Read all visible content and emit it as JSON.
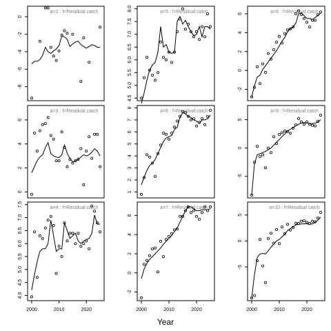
{
  "figure": {
    "xlabel": "Year"
  },
  "colors": {
    "line": "#000000",
    "points": "#000000",
    "panel_title": "#808080",
    "frame": "#000000"
  },
  "chart_data": [
    {
      "type": "line",
      "title": "a=2 : f=Residual catch",
      "ylim": [
        -9.6,
        1.2
      ],
      "yticks": [
        "-8",
        "-6",
        "-4",
        "-2",
        "0"
      ],
      "xlim": [
        1998.5,
        2026.5
      ],
      "xticks": [],
      "series": [
        {
          "x": [
            2000,
            2001,
            2002,
            2003,
            2004,
            2005,
            2006,
            2007,
            2008,
            2009,
            2010,
            2011,
            2012,
            2013,
            2014,
            2015,
            2016,
            2017,
            2018,
            2019,
            2020,
            2021,
            2022,
            2023,
            2024,
            2025
          ],
          "y": [
            -5.4,
            -5.1,
            -5.1,
            -4.9,
            -4.4,
            -3.5,
            -4.0,
            -4.2,
            -3.9,
            -3.7,
            -3.3,
            -2.2,
            -2.3,
            -2.6,
            -3.4,
            -3.1,
            -2.9,
            -2.8,
            -3.2,
            -3.4,
            -3.6,
            -3.4,
            -3.2,
            -3.3,
            -3.5,
            -3.5
          ]
        }
      ],
      "points": {
        "x": [
          2000,
          2003,
          2005,
          2006,
          2007,
          2008,
          2009,
          2010,
          2011,
          2012,
          2013,
          2015,
          2018,
          2019,
          2021,
          2025
        ],
        "y": [
          -9.3,
          -2.8,
          1.0,
          1.0,
          -3.5,
          -4.5,
          -5.0,
          -3.9,
          -2.1,
          -1.6,
          -1.9,
          -2.0,
          -7.4,
          -2.4,
          -5.2,
          -1.2
        ]
      }
    },
    {
      "type": "line",
      "title": "a=5 : f=Residual catch",
      "ylim": [
        4.4,
        8.1
      ],
      "yticks": [
        "4.5",
        "5.0",
        "5.5",
        "6.0",
        "6.5",
        "7.0",
        "7.5",
        "8.0"
      ],
      "xlim": [
        1998.5,
        2026.5
      ],
      "xticks": [],
      "series": [
        {
          "x": [
            2000,
            2001,
            2002,
            2003,
            2004,
            2005,
            2006,
            2007,
            2008,
            2009,
            2010,
            2011,
            2012,
            2013,
            2014,
            2015,
            2016,
            2017,
            2018,
            2019,
            2020,
            2021,
            2022,
            2023,
            2024,
            2025
          ],
          "y": [
            4.3,
            4.7,
            5.2,
            5.6,
            5.8,
            5.9,
            6.3,
            7.3,
            6.5,
            6.6,
            6.3,
            6.25,
            6.3,
            7.5,
            7.7,
            7.4,
            7.55,
            7.3,
            7.1,
            6.95,
            7.0,
            7.3,
            6.9,
            7.3,
            7.3,
            7.2
          ]
        }
      ],
      "points": {
        "x": [
          2000,
          2001,
          2002,
          2003,
          2004,
          2005,
          2006,
          2007,
          2008,
          2009,
          2010,
          2011,
          2012,
          2013,
          2014,
          2015,
          2016,
          2017,
          2018,
          2019,
          2020,
          2021,
          2022,
          2023,
          2024,
          2025
        ],
        "y": [
          4.5,
          5.3,
          6.1,
          5.6,
          5.4,
          5.2,
          5.5,
          6.7,
          6.1,
          6.0,
          6.3,
          5.9,
          6.3,
          7.1,
          7.6,
          8.0,
          7.2,
          7.4,
          7.1,
          6.9,
          7.1,
          6.8,
          7.3,
          6.9,
          7.8,
          7.3
        ]
      }
    },
    {
      "type": "line",
      "title": "a=8 : f=Residual catch",
      "ylim": [
        -3.2,
        6.8
      ],
      "yticks": [
        "-2",
        "0",
        "2",
        "4",
        "6"
      ],
      "xlim": [
        1998.5,
        2026.5
      ],
      "xticks": [],
      "series": [
        {
          "x": [
            2000,
            2001,
            2002,
            2003,
            2004,
            2005,
            2006,
            2007,
            2008,
            2009,
            2010,
            2011,
            2012,
            2013,
            2014,
            2015,
            2016,
            2017,
            2018,
            2019,
            2020,
            2021,
            2022,
            2023,
            2024,
            2025
          ],
          "y": [
            -2.8,
            -1.6,
            -0.7,
            -0.5,
            0.1,
            0.5,
            0.9,
            1.3,
            1.7,
            2.1,
            2.6,
            3.1,
            3.5,
            4.1,
            4.4,
            4.6,
            5.0,
            6.0,
            6.1,
            5.8,
            5.5,
            5.5,
            5.4,
            5.6,
            5.8,
            6.1
          ]
        }
      ],
      "points": {
        "x": [
          2000,
          2001,
          2002,
          2003,
          2004,
          2005,
          2006,
          2007,
          2008,
          2009,
          2010,
          2011,
          2012,
          2013,
          2014,
          2015,
          2016,
          2017,
          2018,
          2019,
          2020,
          2021,
          2022,
          2023,
          2024,
          2025
        ],
        "y": [
          -2.8,
          -1.8,
          0.4,
          -1.4,
          0.7,
          -0.2,
          1.8,
          1.2,
          2.2,
          3.0,
          3.6,
          2.9,
          3.9,
          4.3,
          4.4,
          4.6,
          6.0,
          6.3,
          5.9,
          5.5,
          5.1,
          4.6,
          5.3,
          5.3,
          5.9,
          6.2
        ]
      }
    },
    {
      "type": "line",
      "title": "a=3 : f=Residual catch",
      "ylim": [
        -0.5,
        7.2
      ],
      "yticks": [
        "0",
        "2",
        "4",
        "6"
      ],
      "xlim": [
        1998.5,
        2026.5
      ],
      "xticks": [],
      "series": [
        {
          "x": [
            2000,
            2001,
            2002,
            2003,
            2004,
            2005,
            2006,
            2007,
            2008,
            2009,
            2010,
            2011,
            2012,
            2013,
            2014,
            2015,
            2016,
            2017,
            2018,
            2019,
            2020,
            2021,
            2022,
            2023,
            2024,
            2025
          ],
          "y": [
            1.6,
            2.1,
            2.6,
            2.9,
            3.1,
            3.7,
            4.1,
            3.2,
            3.0,
            2.9,
            2.85,
            3.1,
            3.9,
            3.2,
            2.8,
            2.5,
            2.6,
            2.7,
            2.9,
            3.1,
            3.0,
            3.1,
            3.3,
            3.6,
            3.4,
            3.0
          ]
        }
      ],
      "points": {
        "x": [
          2000,
          2001,
          2002,
          2003,
          2004,
          2005,
          2006,
          2007,
          2008,
          2009,
          2010,
          2011,
          2012,
          2013,
          2014,
          2015,
          2016,
          2017,
          2018,
          2019,
          2020,
          2021,
          2022,
          2023,
          2024,
          2025
        ],
        "y": [
          -0.2,
          4.9,
          3.4,
          5.1,
          5.6,
          5.7,
          6.2,
          4.7,
          4.4,
          2.6,
          2.6,
          5.0,
          3.7,
          2.1,
          2.7,
          2.4,
          2.6,
          2.7,
          3.6,
          0.6,
          3.4,
          4.6,
          2.8,
          4.8,
          4.8,
          2.1
        ]
      }
    },
    {
      "type": "line",
      "title": "a=6 : f=Residual catch",
      "ylim": [
        0.5,
        8.2
      ],
      "yticks": [
        "1",
        "2",
        "3",
        "4",
        "5",
        "6",
        "7",
        "8"
      ],
      "xlim": [
        1998.5,
        2026.5
      ],
      "xticks": [],
      "series": [
        {
          "x": [
            2000,
            2001,
            2002,
            2003,
            2004,
            2005,
            2006,
            2007,
            2008,
            2009,
            2010,
            2011,
            2012,
            2013,
            2014,
            2015,
            2016,
            2017,
            2018,
            2019,
            2020,
            2021,
            2022,
            2023,
            2024,
            2025
          ],
          "y": [
            1.6,
            2.2,
            2.8,
            3.2,
            3.4,
            3.7,
            4.2,
            4.7,
            5.2,
            5.5,
            5.6,
            5.7,
            6.2,
            6.4,
            7.2,
            7.6,
            7.5,
            7.3,
            7.2,
            7.0,
            6.9,
            6.7,
            7.0,
            7.0,
            7.1,
            7.4
          ]
        }
      ],
      "points": {
        "x": [
          2000,
          2001,
          2002,
          2003,
          2004,
          2005,
          2006,
          2007,
          2008,
          2009,
          2010,
          2011,
          2012,
          2013,
          2014,
          2015,
          2016,
          2017,
          2018,
          2019,
          2020,
          2021,
          2022,
          2023,
          2024,
          2025
        ],
        "y": [
          0.8,
          2.2,
          4.1,
          3.9,
          3.4,
          2.3,
          4.2,
          4.9,
          5.9,
          5.8,
          5.4,
          5.9,
          6.4,
          6.9,
          7.3,
          7.7,
          7.6,
          7.3,
          7.0,
          7.1,
          6.5,
          6.8,
          7.1,
          6.6,
          7.3,
          7.8
        ]
      }
    },
    {
      "type": "line",
      "title": "a=9 : f=Residual catch",
      "ylim": [
        -8.8,
        7.5
      ],
      "yticks": [
        "-5",
        "0",
        "5"
      ],
      "xlim": [
        1998.5,
        2026.5
      ],
      "xticks": [],
      "series": [
        {
          "x": [
            2000,
            2001,
            2002,
            2003,
            2004,
            2005,
            2006,
            2007,
            2008,
            2009,
            2010,
            2011,
            2012,
            2013,
            2014,
            2015,
            2016,
            2017,
            2018,
            2019,
            2020,
            2021,
            2022,
            2023,
            2024,
            2025
          ],
          "y": [
            -8.3,
            -2.8,
            -1.2,
            -1.0,
            -0.8,
            -0.6,
            -0.3,
            0.0,
            0.5,
            1.0,
            1.5,
            2.0,
            2.5,
            3.0,
            3.3,
            3.6,
            3.9,
            4.2,
            4.4,
            4.5,
            4.4,
            4.3,
            4.3,
            4.4,
            4.6,
            5.0
          ]
        }
      ],
      "points": {
        "x": [
          2000,
          2001,
          2002,
          2003,
          2004,
          2005,
          2006,
          2007,
          2008,
          2009,
          2010,
          2011,
          2012,
          2013,
          2014,
          2015,
          2016,
          2017,
          2018,
          2019,
          2020,
          2021,
          2022,
          2023,
          2024,
          2025
        ],
        "y": [
          -8.3,
          -2.5,
          0.3,
          -1.5,
          -1.2,
          -3.5,
          0.0,
          -0.8,
          2.0,
          0.8,
          2.4,
          2.7,
          3.0,
          2.9,
          2.6,
          3.5,
          4.1,
          5.2,
          4.6,
          4.2,
          4.6,
          4.2,
          4.0,
          3.9,
          4.7,
          5.8
        ]
      }
    },
    {
      "type": "line",
      "title": "a=4 : f=Residual catch",
      "ylim": [
        3.8,
        7.6
      ],
      "yticks": [
        "4.0",
        "4.5",
        "5.0",
        "5.5",
        "6.0",
        "6.5",
        "7.0",
        "7.5"
      ],
      "xlim": [
        1998.5,
        2026.5
      ],
      "xticks": [
        "2000",
        "2010",
        "2020"
      ],
      "series": [
        {
          "x": [
            2000,
            2001,
            2002,
            2003,
            2004,
            2005,
            2006,
            2007,
            2008,
            2009,
            2010,
            2011,
            2012,
            2013,
            2014,
            2015,
            2016,
            2017,
            2018,
            2019,
            2020,
            2021,
            2022,
            2023,
            2024,
            2025
          ],
          "y": [
            4.2,
            4.8,
            5.3,
            5.7,
            5.8,
            5.8,
            6.0,
            6.9,
            6.3,
            5.7,
            5.8,
            5.8,
            6.8,
            6.5,
            6.2,
            6.3,
            6.4,
            6.1,
            6.0,
            6.1,
            6.15,
            6.2,
            6.4,
            7.1,
            6.75,
            6.75
          ]
        }
      ],
      "points": {
        "x": [
          2000,
          2001,
          2002,
          2003,
          2004,
          2005,
          2006,
          2007,
          2008,
          2009,
          2010,
          2011,
          2012,
          2013,
          2014,
          2015,
          2016,
          2017,
          2018,
          2019,
          2020,
          2021,
          2022,
          2023,
          2024,
          2025
        ],
        "y": [
          3.95,
          6.45,
          4.7,
          6.3,
          6.2,
          6.6,
          6.9,
          7.05,
          6.7,
          4.85,
          5.9,
          5.5,
          6.8,
          6.1,
          6.4,
          6.4,
          6.0,
          6.4,
          5.9,
          6.0,
          6.1,
          5.8,
          7.45,
          7.25,
          6.8,
          6.45
        ]
      }
    },
    {
      "type": "line",
      "title": "a=7 : f=Residual catch",
      "ylim": [
        -2.9,
        7.4
      ],
      "yticks": [
        "-2",
        "0",
        "2",
        "4",
        "6"
      ],
      "xlim": [
        1998.5,
        2026.5
      ],
      "xticks": [
        "2000",
        "2010",
        "2020"
      ],
      "series": [
        {
          "x": [
            2000,
            2001,
            2002,
            2003,
            2004,
            2005,
            2006,
            2007,
            2008,
            2009,
            2010,
            2011,
            2012,
            2013,
            2014,
            2015,
            2016,
            2017,
            2018,
            2019,
            2020,
            2021,
            2022,
            2023,
            2024,
            2025
          ],
          "y": [
            -0.6,
            0.4,
            1.0,
            1.4,
            1.7,
            2.0,
            2.3,
            2.6,
            3.0,
            3.3,
            3.6,
            3.9,
            4.3,
            4.7,
            5.3,
            5.9,
            6.5,
            6.9,
            6.9,
            6.7,
            6.5,
            6.5,
            6.6,
            6.6,
            6.6,
            6.7
          ]
        }
      ],
      "points": {
        "x": [
          2000,
          2001,
          2002,
          2003,
          2004,
          2005,
          2006,
          2007,
          2008,
          2009,
          2010,
          2011,
          2012,
          2013,
          2014,
          2015,
          2016,
          2017,
          2018,
          2019,
          2020,
          2021,
          2022,
          2023,
          2024,
          2025
        ],
        "y": [
          -2.6,
          0.9,
          1.3,
          1.8,
          2.5,
          2.6,
          0.1,
          3.3,
          1.7,
          3.5,
          3.8,
          4.1,
          4.5,
          4.6,
          5.9,
          5.9,
          6.5,
          6.9,
          6.3,
          6.5,
          5.9,
          5.6,
          6.3,
          6.9,
          6.5,
          6.9
        ]
      }
    },
    {
      "type": "line",
      "title": "a=10 : f=Residual catch",
      "ylim": [
        -11.5,
        7.5
      ],
      "yticks": [
        "-5",
        "0",
        "5"
      ],
      "xlim": [
        1998.5,
        2026.5
      ],
      "xticks": [
        "2000",
        "2010",
        "2020"
      ],
      "series": [
        {
          "x": [
            2000,
            2001,
            2002,
            2003,
            2004,
            2005,
            2006,
            2007,
            2008,
            2009,
            2010,
            2011,
            2012,
            2013,
            2014,
            2015,
            2016,
            2017,
            2018,
            2019,
            2020,
            2021,
            2022,
            2023,
            2024,
            2025
          ],
          "y": [
            -11.0,
            -6.5,
            -3.2,
            -2.5,
            -2.4,
            -2.5,
            -1.9,
            -1.2,
            -0.6,
            0.0,
            0.3,
            0.8,
            1.3,
            2.0,
            2.4,
            2.7,
            3.1,
            3.2,
            3.3,
            3.3,
            3.3,
            3.2,
            3.3,
            3.6,
            4.0,
            4.6
          ]
        }
      ],
      "points": {
        "x": [
          2000,
          2001,
          2002,
          2003,
          2004,
          2005,
          2006,
          2007,
          2008,
          2009,
          2010,
          2011,
          2012,
          2013,
          2014,
          2015,
          2016,
          2017,
          2018,
          2019,
          2020,
          2021,
          2022,
          2023,
          2024,
          2025
        ],
        "y": [
          -11.0,
          -10.5,
          -3.8,
          0.3,
          -4.8,
          -8.0,
          0.5,
          1.5,
          -0.4,
          2.2,
          -0.5,
          2.7,
          1.4,
          3.2,
          2.1,
          2.6,
          3.4,
          3.4,
          3.8,
          3.9,
          3.6,
          3.4,
          3.8,
          3.7,
          4.4,
          5.5
        ]
      }
    }
  ]
}
